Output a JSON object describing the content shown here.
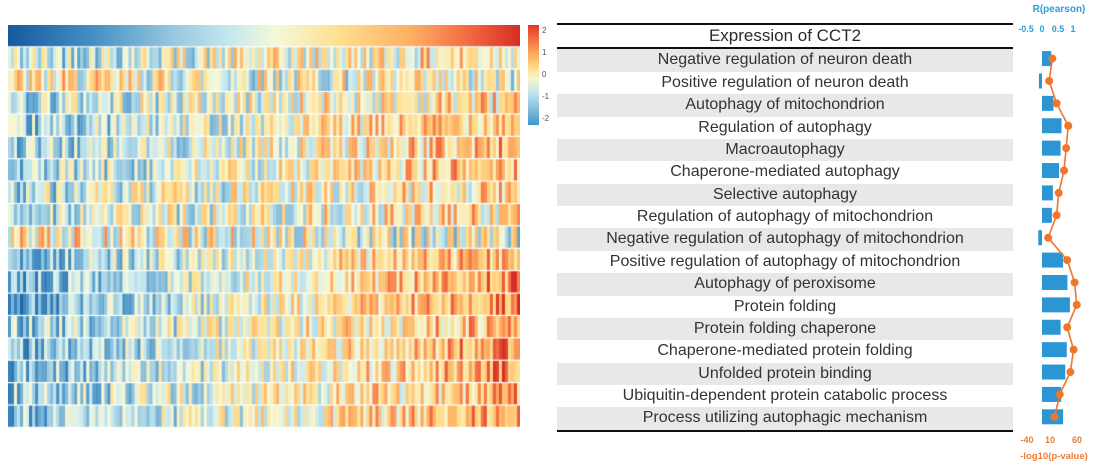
{
  "heatmap": {
    "colorbar_ticks": [
      "2",
      "1",
      "0",
      "-1",
      "-2"
    ]
  },
  "labels_panel": {
    "header": "Expression of CCT2",
    "terms": [
      "Negative regulation of neuron death",
      "Positive regulation of neuron death",
      "Autophagy of mitochondrion",
      "Regulation of autophagy",
      "Macroautophagy",
      "Chaperone-mediated autophagy",
      "Selective autophagy",
      "Regulation of autophagy of mitochondrion",
      "Negative regulation of autophagy of mitochondrion",
      "Positive regulation of autophagy of mitochondrion",
      "Autophagy of peroxisome",
      "Protein folding",
      "Protein folding chaperone",
      "Chaperone-mediated protein folding",
      "Unfolded protein binding",
      "Ubiquitin-dependent protein catabolic process",
      "Process utilizing autophagic mechanism"
    ]
  },
  "right_chart": {
    "title": "R(pearson)",
    "top_axis_ticks": [
      "-0.5",
      "0",
      "0.5",
      "1"
    ],
    "bottom_axis_ticks": [
      "-40",
      "10",
      "60"
    ],
    "bottom_axis_label": "-log10(p-value)",
    "bar_color": "#2b96d3",
    "dot_color": "#f0762b"
  },
  "chart_data": [
    {
      "type": "heatmap",
      "title": "Expression of CCT2",
      "rows": [
        "Expression of CCT2",
        "Negative regulation of neuron death",
        "Positive regulation of neuron death",
        "Autophagy of mitochondrion",
        "Regulation of autophagy",
        "Macroautophagy",
        "Chaperone-mediated autophagy",
        "Selective autophagy",
        "Regulation of autophagy of mitochondrion",
        "Negative regulation of autophagy of mitochondrion",
        "Positive regulation of autophagy of mitochondrion",
        "Autophagy of peroxisome",
        "Protein folding",
        "Protein folding chaperone",
        "Chaperone-mediated protein folding",
        "Unfolded protein binding",
        "Ubiquitin-dependent protein catabolic process",
        "Process utilizing autophagic mechanism"
      ],
      "n_columns": 170,
      "value_range": [
        -2,
        2
      ],
      "colorbar_ticks": [
        2,
        1,
        0,
        -1,
        -2
      ],
      "colormap": "blue -> pale yellow -> red (top row is CCT2 expression sorted low to high; other rows trend with their correlation)"
    },
    {
      "type": "bar",
      "title": "R(pearson)",
      "orientation": "horizontal",
      "xlim": [
        -0.5,
        1
      ],
      "tick_values": [
        -0.5,
        0,
        0.5,
        1
      ],
      "categories": [
        "Negative regulation of neuron death",
        "Positive regulation of neuron death",
        "Autophagy of mitochondrion",
        "Regulation of autophagy",
        "Macroautophagy",
        "Chaperone-mediated autophagy",
        "Selective autophagy",
        "Regulation of autophagy of mitochondrion",
        "Negative regulation of autophagy of mitochondrion",
        "Positive regulation of autophagy of mitochondrion",
        "Autophagy of peroxisome",
        "Protein folding",
        "Protein folding chaperone",
        "Chaperone-mediated protein folding",
        "Unfolded protein binding",
        "Ubiquitin-dependent protein catabolic process",
        "Process utilizing autophagic mechanism"
      ],
      "values": [
        0.3,
        -0.1,
        0.37,
        0.63,
        0.6,
        0.55,
        0.35,
        0.32,
        -0.12,
        0.68,
        0.82,
        0.9,
        0.6,
        0.8,
        0.75,
        0.62,
        0.68
      ]
    },
    {
      "type": "line",
      "title": "-log10(p-value)",
      "xlim": [
        -40,
        60
      ],
      "tick_values": [
        -40,
        10,
        60
      ],
      "categories": [
        "Negative regulation of neuron death",
        "Positive regulation of neuron death",
        "Autophagy of mitochondrion",
        "Regulation of autophagy",
        "Macroautophagy",
        "Chaperone-mediated autophagy",
        "Selective autophagy",
        "Regulation of autophagy of mitochondrion",
        "Negative regulation of autophagy of mitochondrion",
        "Positive regulation of autophagy of mitochondrion",
        "Autophagy of peroxisome",
        "Protein folding",
        "Protein folding chaperone",
        "Chaperone-mediated protein folding",
        "Unfolded protein binding",
        "Ubiquitin-dependent protein catabolic process",
        "Process utilizing autophagic mechanism"
      ],
      "values": [
        12,
        6,
        20,
        42,
        38,
        34,
        24,
        20,
        4,
        40,
        54,
        58,
        40,
        52,
        46,
        26,
        16
      ]
    }
  ]
}
